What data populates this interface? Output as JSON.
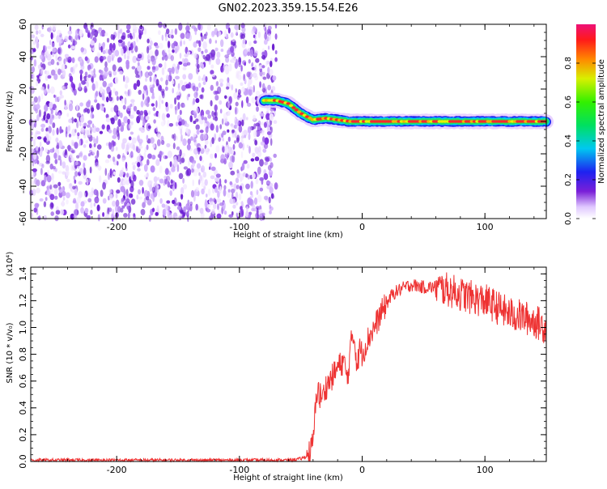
{
  "page": {
    "title": "GN02.2023.359.15.54.E26"
  },
  "chart_data": [
    {
      "type": "heatmap",
      "xlabel": "Height of straight line (km)",
      "ylabel": "Frequency (Hz)",
      "xlim": [
        -270,
        150
      ],
      "ylim": [
        -60,
        60
      ],
      "x_ticks": [
        -200,
        -100,
        0,
        100
      ],
      "y_ticks": [
        -60,
        -40,
        -20,
        0,
        20,
        40,
        60
      ],
      "noise_region_x": [
        -270,
        -70
      ],
      "ridge": {
        "x": [
          -80,
          -70,
          -60,
          -55,
          -50,
          -45,
          -40,
          -30,
          -20,
          -10,
          0,
          20,
          50,
          100,
          150
        ],
        "freq": [
          13,
          13,
          11,
          8,
          5,
          3,
          1,
          2,
          1,
          0,
          0,
          0,
          0,
          0,
          0
        ]
      },
      "colorbar": {
        "label": "Normalized spectral amplitude",
        "range": [
          0.0,
          1.0
        ],
        "ticks": [
          0.0,
          0.2,
          0.4,
          0.6,
          0.8
        ]
      },
      "grid": false
    },
    {
      "type": "line",
      "xlabel": "Height of straight line (km)",
      "ylabel": "SNR (10 * v/v₀)",
      "multiplier_label": "(x10⁴)",
      "xlim": [
        -270,
        150
      ],
      "ylim": [
        0.0,
        1.45
      ],
      "x_ticks": [
        -200,
        -100,
        0,
        100
      ],
      "y_ticks": [
        0.0,
        0.2,
        0.4,
        0.6,
        0.8,
        1.0,
        1.2,
        1.4
      ],
      "color": "#ee3333",
      "series": [
        {
          "x": [
            -270,
            -200,
            -100,
            -60,
            -50,
            -45,
            -42,
            -40,
            -38,
            -36,
            -35,
            -34,
            -32,
            -30,
            -28,
            -25,
            -20,
            -15,
            -12,
            -10,
            -8,
            -6,
            -4,
            -2,
            0,
            5,
            10,
            15,
            20,
            25,
            30,
            35,
            40,
            50,
            60,
            70,
            80,
            90,
            100,
            110,
            120,
            130,
            140,
            150
          ],
          "values": [
            0.01,
            0.01,
            0.01,
            0.01,
            0.02,
            0.04,
            0.08,
            0.14,
            0.4,
            0.6,
            0.45,
            0.5,
            0.48,
            0.55,
            0.58,
            0.62,
            0.7,
            0.75,
            0.6,
            0.8,
            0.95,
            0.9,
            0.7,
            0.85,
            0.8,
            0.92,
            1.0,
            1.1,
            1.18,
            1.25,
            1.28,
            1.3,
            1.32,
            1.3,
            1.3,
            1.28,
            1.25,
            1.22,
            1.2,
            1.15,
            1.1,
            1.08,
            1.05,
            1.0
          ]
        }
      ],
      "grid": false
    }
  ]
}
